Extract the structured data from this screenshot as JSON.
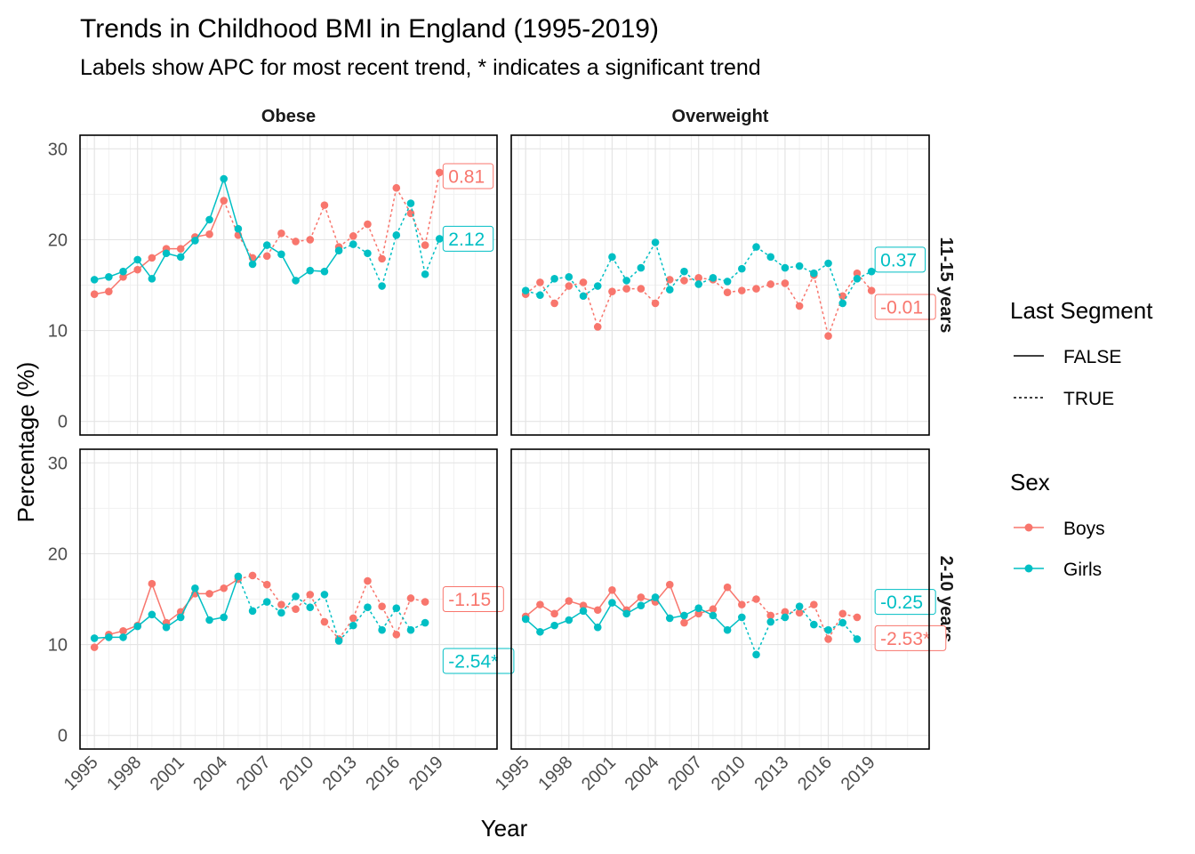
{
  "chart_data": {
    "type": "line",
    "title": "Trends in Childhood BMI in England (1995-2019)",
    "subtitle": "Labels show APC for most recent trend, * indicates a significant trend",
    "xlabel": "Year",
    "ylabel": "Percentage (%)",
    "x_ticks": [
      1995,
      1998,
      2001,
      2004,
      2007,
      2010,
      2013,
      2016,
      2019
    ],
    "y_ticks": [
      0,
      10,
      20,
      30
    ],
    "xlim": [
      1994,
      2023
    ],
    "ylim": [
      -1.5,
      31.5
    ],
    "grid": true,
    "columns": [
      "Obese",
      "Overweight"
    ],
    "rows": [
      "11-15 years",
      "2-10 years"
    ],
    "colors": {
      "Boys": "#F8766D",
      "Girls": "#00BFC4"
    },
    "legend": {
      "position": "right",
      "segment_title": "Last Segment",
      "segment_items": [
        "FALSE",
        "TRUE"
      ],
      "sex_title": "Sex",
      "sex_items": [
        "Boys",
        "Girls"
      ]
    },
    "panels": [
      {
        "column": "Obese",
        "row": "11-15 years",
        "series": [
          {
            "name": "Boys",
            "break_year": 2004,
            "x": [
              1995,
              1996,
              1997,
              1998,
              1999,
              2000,
              2001,
              2002,
              2003,
              2004,
              2005,
              2006,
              2007,
              2008,
              2009,
              2010,
              2011,
              2012,
              2013,
              2014,
              2015,
              2016,
              2017,
              2018,
              2019
            ],
            "y": [
              14.0,
              14.3,
              15.9,
              16.7,
              18.0,
              19.0,
              19.0,
              20.3,
              20.6,
              24.3,
              20.5,
              18.0,
              18.2,
              20.7,
              19.8,
              20.0,
              23.8,
              19.2,
              20.4,
              21.7,
              17.9,
              25.7,
              22.9,
              19.4,
              27.4
            ],
            "label": "0.81",
            "label_value_y": 27.0
          },
          {
            "name": "Girls",
            "break_year": 2012,
            "x": [
              1995,
              1996,
              1997,
              1998,
              1999,
              2000,
              2001,
              2002,
              2003,
              2004,
              2005,
              2006,
              2007,
              2008,
              2009,
              2010,
              2011,
              2012,
              2013,
              2014,
              2015,
              2016,
              2017,
              2018,
              2019
            ],
            "y": [
              15.6,
              15.9,
              16.5,
              17.8,
              15.7,
              18.5,
              18.1,
              19.9,
              22.2,
              26.7,
              21.2,
              17.3,
              19.4,
              18.4,
              15.5,
              16.6,
              16.5,
              18.8,
              19.5,
              18.5,
              14.9,
              20.5,
              24.0,
              16.2,
              20.1
            ],
            "label": "2.12",
            "label_value_y": 20.1
          }
        ]
      },
      {
        "column": "Overweight",
        "row": "11-15 years",
        "series": [
          {
            "name": "Boys",
            "break_year": 1995,
            "x": [
              1995,
              1996,
              1997,
              1998,
              1999,
              2000,
              2001,
              2002,
              2003,
              2004,
              2005,
              2006,
              2007,
              2008,
              2009,
              2010,
              2011,
              2012,
              2013,
              2014,
              2015,
              2016,
              2017,
              2018,
              2019
            ],
            "y": [
              14.0,
              15.3,
              13.0,
              14.9,
              15.3,
              10.4,
              14.3,
              14.6,
              14.6,
              13.0,
              15.6,
              15.5,
              15.8,
              15.6,
              14.2,
              14.4,
              14.6,
              15.1,
              15.2,
              12.7,
              16.1,
              9.4,
              13.8,
              16.3,
              14.4
            ],
            "label": "-0.01",
            "label_value_y": 12.6
          },
          {
            "name": "Girls",
            "break_year": 1995,
            "x": [
              1995,
              1996,
              1997,
              1998,
              1999,
              2000,
              2001,
              2002,
              2003,
              2004,
              2005,
              2006,
              2007,
              2008,
              2009,
              2010,
              2011,
              2012,
              2013,
              2014,
              2015,
              2016,
              2017,
              2018,
              2019
            ],
            "y": [
              14.4,
              13.9,
              15.7,
              15.9,
              13.8,
              14.9,
              18.1,
              15.5,
              16.9,
              19.7,
              14.5,
              16.5,
              15.1,
              15.8,
              15.4,
              16.8,
              19.2,
              18.1,
              16.9,
              17.1,
              16.3,
              17.4,
              13.0,
              15.7,
              16.5
            ],
            "label": "0.37",
            "label_value_y": 17.8
          }
        ]
      },
      {
        "column": "Obese",
        "row": "2-10 years",
        "series": [
          {
            "name": "Boys",
            "break_year": 2005,
            "x": [
              1995,
              1996,
              1997,
              1998,
              1999,
              2000,
              2001,
              2002,
              2003,
              2004,
              2005,
              2006,
              2007,
              2008,
              2009,
              2010,
              2011,
              2012,
              2013,
              2014,
              2015,
              2016,
              2017,
              2018
            ],
            "y": [
              9.7,
              11.1,
              11.5,
              12.1,
              16.7,
              12.4,
              13.6,
              15.6,
              15.6,
              16.2,
              17.2,
              17.6,
              16.6,
              14.4,
              13.9,
              15.5,
              12.5,
              10.6,
              12.9,
              17.0,
              14.2,
              11.1,
              15.1,
              14.7
            ],
            "label": "-1.15",
            "label_value_y": 15.0
          },
          {
            "name": "Girls",
            "break_year": 2005,
            "x": [
              1995,
              1996,
              1997,
              1998,
              1999,
              2000,
              2001,
              2002,
              2003,
              2004,
              2005,
              2006,
              2007,
              2008,
              2009,
              2010,
              2011,
              2012,
              2013,
              2014,
              2015,
              2016,
              2017,
              2018
            ],
            "y": [
              10.7,
              10.8,
              10.8,
              12.0,
              13.3,
              11.9,
              13.0,
              16.2,
              12.7,
              13.0,
              17.5,
              13.7,
              14.7,
              13.5,
              15.3,
              14.1,
              15.5,
              10.4,
              12.1,
              14.1,
              11.6,
              14.0,
              11.6,
              12.4
            ],
            "label": "-2.54*",
            "label_value_y": 8.2
          }
        ]
      },
      {
        "column": "Overweight",
        "row": "2-10 years",
        "series": [
          {
            "name": "Boys",
            "break_year": 2010,
            "x": [
              1995,
              1996,
              1997,
              1998,
              1999,
              2000,
              2001,
              2002,
              2003,
              2004,
              2005,
              2006,
              2007,
              2008,
              2009,
              2010,
              2011,
              2012,
              2013,
              2014,
              2015,
              2016,
              2017,
              2018
            ],
            "y": [
              13.1,
              14.4,
              13.4,
              14.8,
              14.3,
              13.8,
              16.0,
              13.8,
              15.2,
              14.7,
              16.6,
              12.4,
              13.4,
              13.9,
              16.3,
              14.4,
              15.0,
              13.2,
              13.6,
              13.5,
              14.4,
              10.6,
              13.4,
              13.0
            ],
            "label": "-2.53*",
            "label_value_y": 10.7
          },
          {
            "name": "Girls",
            "break_year": 2010,
            "x": [
              1995,
              1996,
              1997,
              1998,
              1999,
              2000,
              2001,
              2002,
              2003,
              2004,
              2005,
              2006,
              2007,
              2008,
              2009,
              2010,
              2011,
              2012,
              2013,
              2014,
              2015,
              2016,
              2017,
              2018
            ],
            "y": [
              12.8,
              11.4,
              12.1,
              12.7,
              13.7,
              11.9,
              14.6,
              13.4,
              14.3,
              15.2,
              12.9,
              13.2,
              14.0,
              13.2,
              11.6,
              13.0,
              8.9,
              12.5,
              13.0,
              14.2,
              12.2,
              11.6,
              12.4,
              10.6
            ],
            "label": "-0.25",
            "label_value_y": 14.7
          }
        ]
      }
    ]
  }
}
